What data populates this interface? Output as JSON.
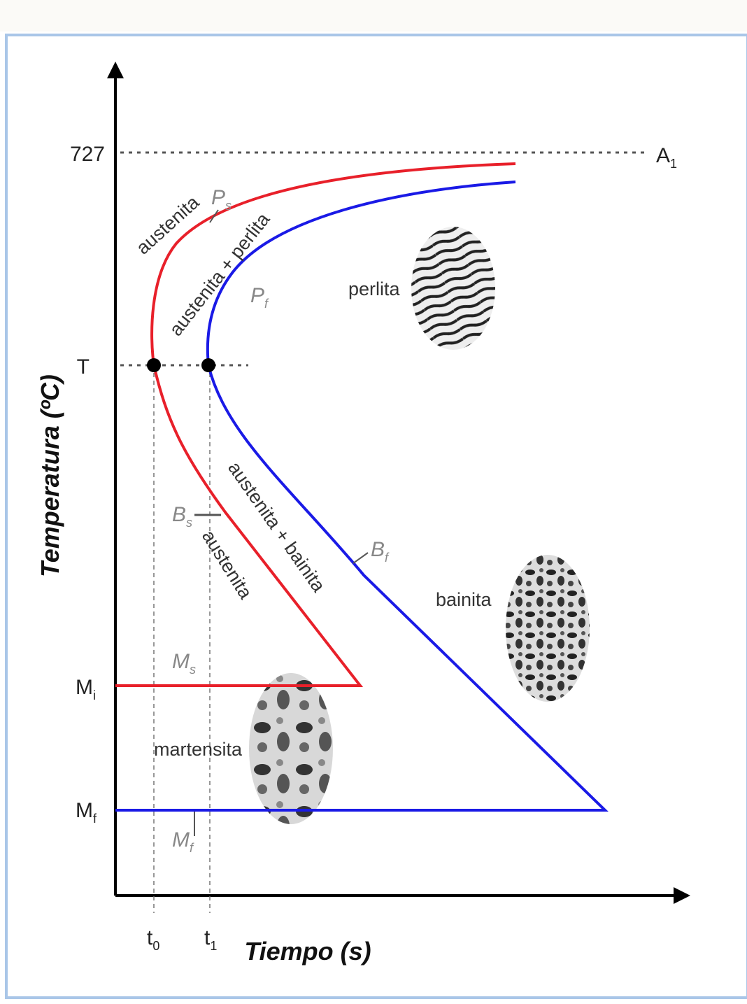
{
  "diagram": {
    "y_labels": [
      {
        "text": "727"
      },
      {
        "text": "T"
      },
      {
        "text": "M",
        "sub": "i"
      },
      {
        "text": "M",
        "sub": "f"
      }
    ],
    "reference_label": {
      "text": "A",
      "sub": "1"
    },
    "x_labels": [
      {
        "text": "t",
        "sub": "0"
      },
      {
        "text": "t",
        "sub": "1"
      }
    ],
    "y_title": "Temperatura (ºC)",
    "x_title": "Tiempo (s)",
    "regions": [
      "austenita",
      "austenita + perlita",
      "perlita",
      "austenita + bainita",
      "austenita",
      "bainita",
      "martensita"
    ],
    "curve_labels": [
      {
        "text": "P",
        "sub": "s"
      },
      {
        "text": "P",
        "sub": "f"
      },
      {
        "text": "B",
        "sub": "s"
      },
      {
        "text": "B",
        "sub": "f"
      },
      {
        "text": "M",
        "sub": "s"
      },
      {
        "text": "M",
        "sub": "f"
      }
    ]
  }
}
